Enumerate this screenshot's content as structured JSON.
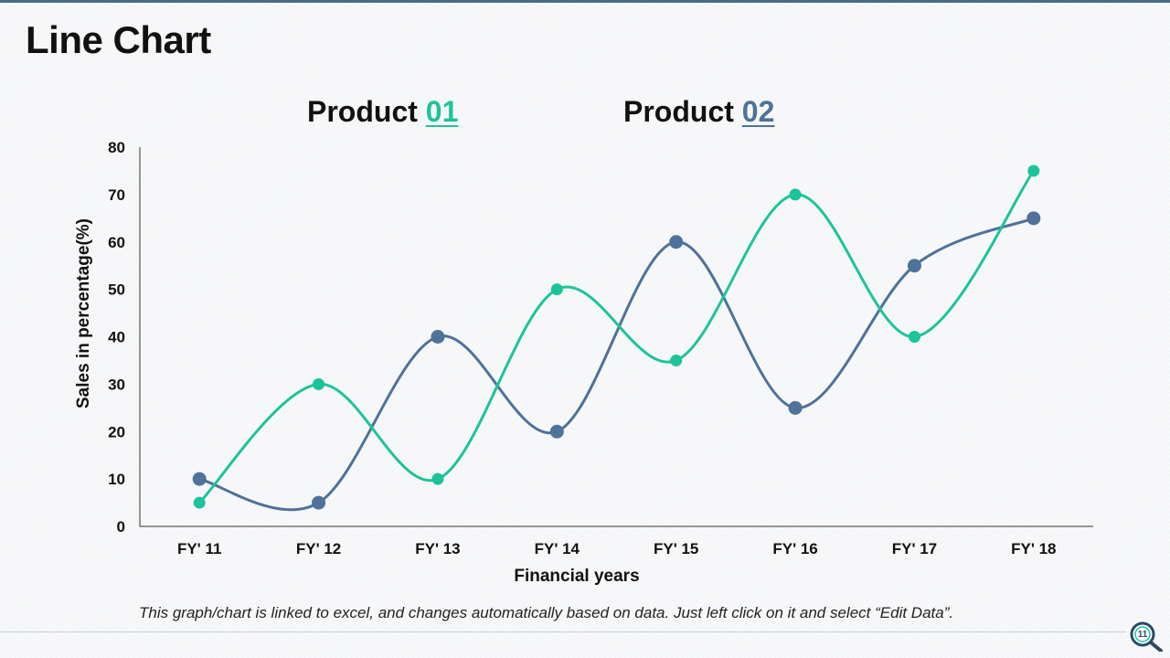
{
  "slide": {
    "title": "Line Chart",
    "footnote": "This graph/chart is linked to excel, and changes automatically based on data. Just left click on it and select “Edit Data”.",
    "page_number": "11"
  },
  "legend": {
    "product1": {
      "prefix": "Product ",
      "number": "01"
    },
    "product2": {
      "prefix": "Product ",
      "number": "02"
    }
  },
  "colors": {
    "product1": "#1dc39b",
    "product2": "#4e7299",
    "axis": "#333333",
    "accent": "#4a6a86"
  },
  "chart_data": {
    "type": "line",
    "title": "",
    "xlabel": "Financial years",
    "ylabel": "Sales in percentage(%)",
    "categories": [
      "FY' 11",
      "FY' 12",
      "FY' 13",
      "FY' 14",
      "FY' 15",
      "FY' 16",
      "FY' 17",
      "FY' 18"
    ],
    "ylim": [
      0,
      80
    ],
    "yticks": [
      0,
      10,
      20,
      30,
      40,
      50,
      60,
      70,
      80
    ],
    "grid": false,
    "smooth": true,
    "legend_position": "top",
    "series": [
      {
        "name": "Product 01",
        "color": "#1dc39b",
        "values": [
          5,
          30,
          10,
          50,
          35,
          70,
          40,
          75
        ]
      },
      {
        "name": "Product 02",
        "color": "#4e7299",
        "values": [
          10,
          5,
          40,
          20,
          60,
          25,
          55,
          65
        ]
      }
    ]
  }
}
